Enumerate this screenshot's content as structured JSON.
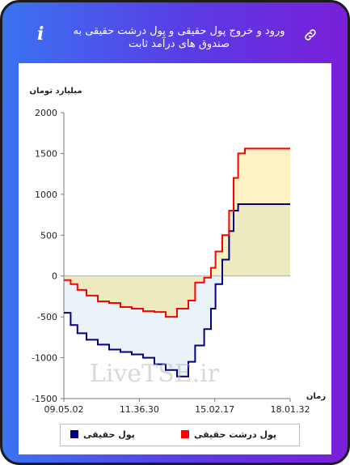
{
  "header": {
    "title": "ورود و خروج پول حقیقی و پول درشت حقیقی به صندوق های درآمد ثابت",
    "info_icon": "i"
  },
  "colors": {
    "red_series": "#ff0000",
    "navy_series": "#000080",
    "fill_upper": "#fdf2c4",
    "fill_lower": "#eeeac0",
    "fill_between_negative": "#eaf3fa"
  },
  "watermark": "LiveTSE.ir",
  "chart_data": {
    "type": "line",
    "ylabel": "میلیارد تومان",
    "xlabel": "زمان",
    "ylim": [
      -1500,
      2000
    ],
    "yticks": [
      2000,
      1500,
      1000,
      500,
      0,
      -500,
      -1000,
      -1500
    ],
    "xticks": [
      "09.05.02",
      "11.36.30",
      "15.02.17",
      "18.01.32"
    ],
    "x": [
      0,
      3,
      6,
      10,
      15,
      20,
      25,
      30,
      35,
      40,
      45,
      50,
      55,
      58,
      62,
      65,
      67,
      70,
      73,
      75,
      77,
      80,
      82,
      84,
      87,
      90,
      92,
      95,
      97,
      100
    ],
    "series": [
      {
        "name": "پول درشت حقیقی",
        "color": "#ff0000",
        "values": [
          -50,
          -100,
          -170,
          -240,
          -310,
          -330,
          -380,
          -400,
          -430,
          -440,
          -500,
          -400,
          -300,
          -80,
          -20,
          100,
          300,
          500,
          800,
          1200,
          1500,
          1560,
          1560,
          1560,
          1560,
          1560,
          1560,
          1560,
          1560,
          1560
        ]
      },
      {
        "name": "پول حقیقی",
        "color": "#000080",
        "values": [
          -450,
          -600,
          -700,
          -780,
          -840,
          -900,
          -930,
          -960,
          -1000,
          -1080,
          -1150,
          -1230,
          -1050,
          -850,
          -650,
          -400,
          -100,
          200,
          550,
          800,
          880,
          880,
          880,
          880,
          880,
          880,
          880,
          880,
          880,
          880
        ]
      }
    ],
    "legend": {
      "position": "bottom",
      "entries": [
        {
          "label": "پول حقیقی",
          "color": "#000080"
        },
        {
          "label": "پول درشت حقیقی",
          "color": "#ff0000"
        }
      ]
    }
  }
}
